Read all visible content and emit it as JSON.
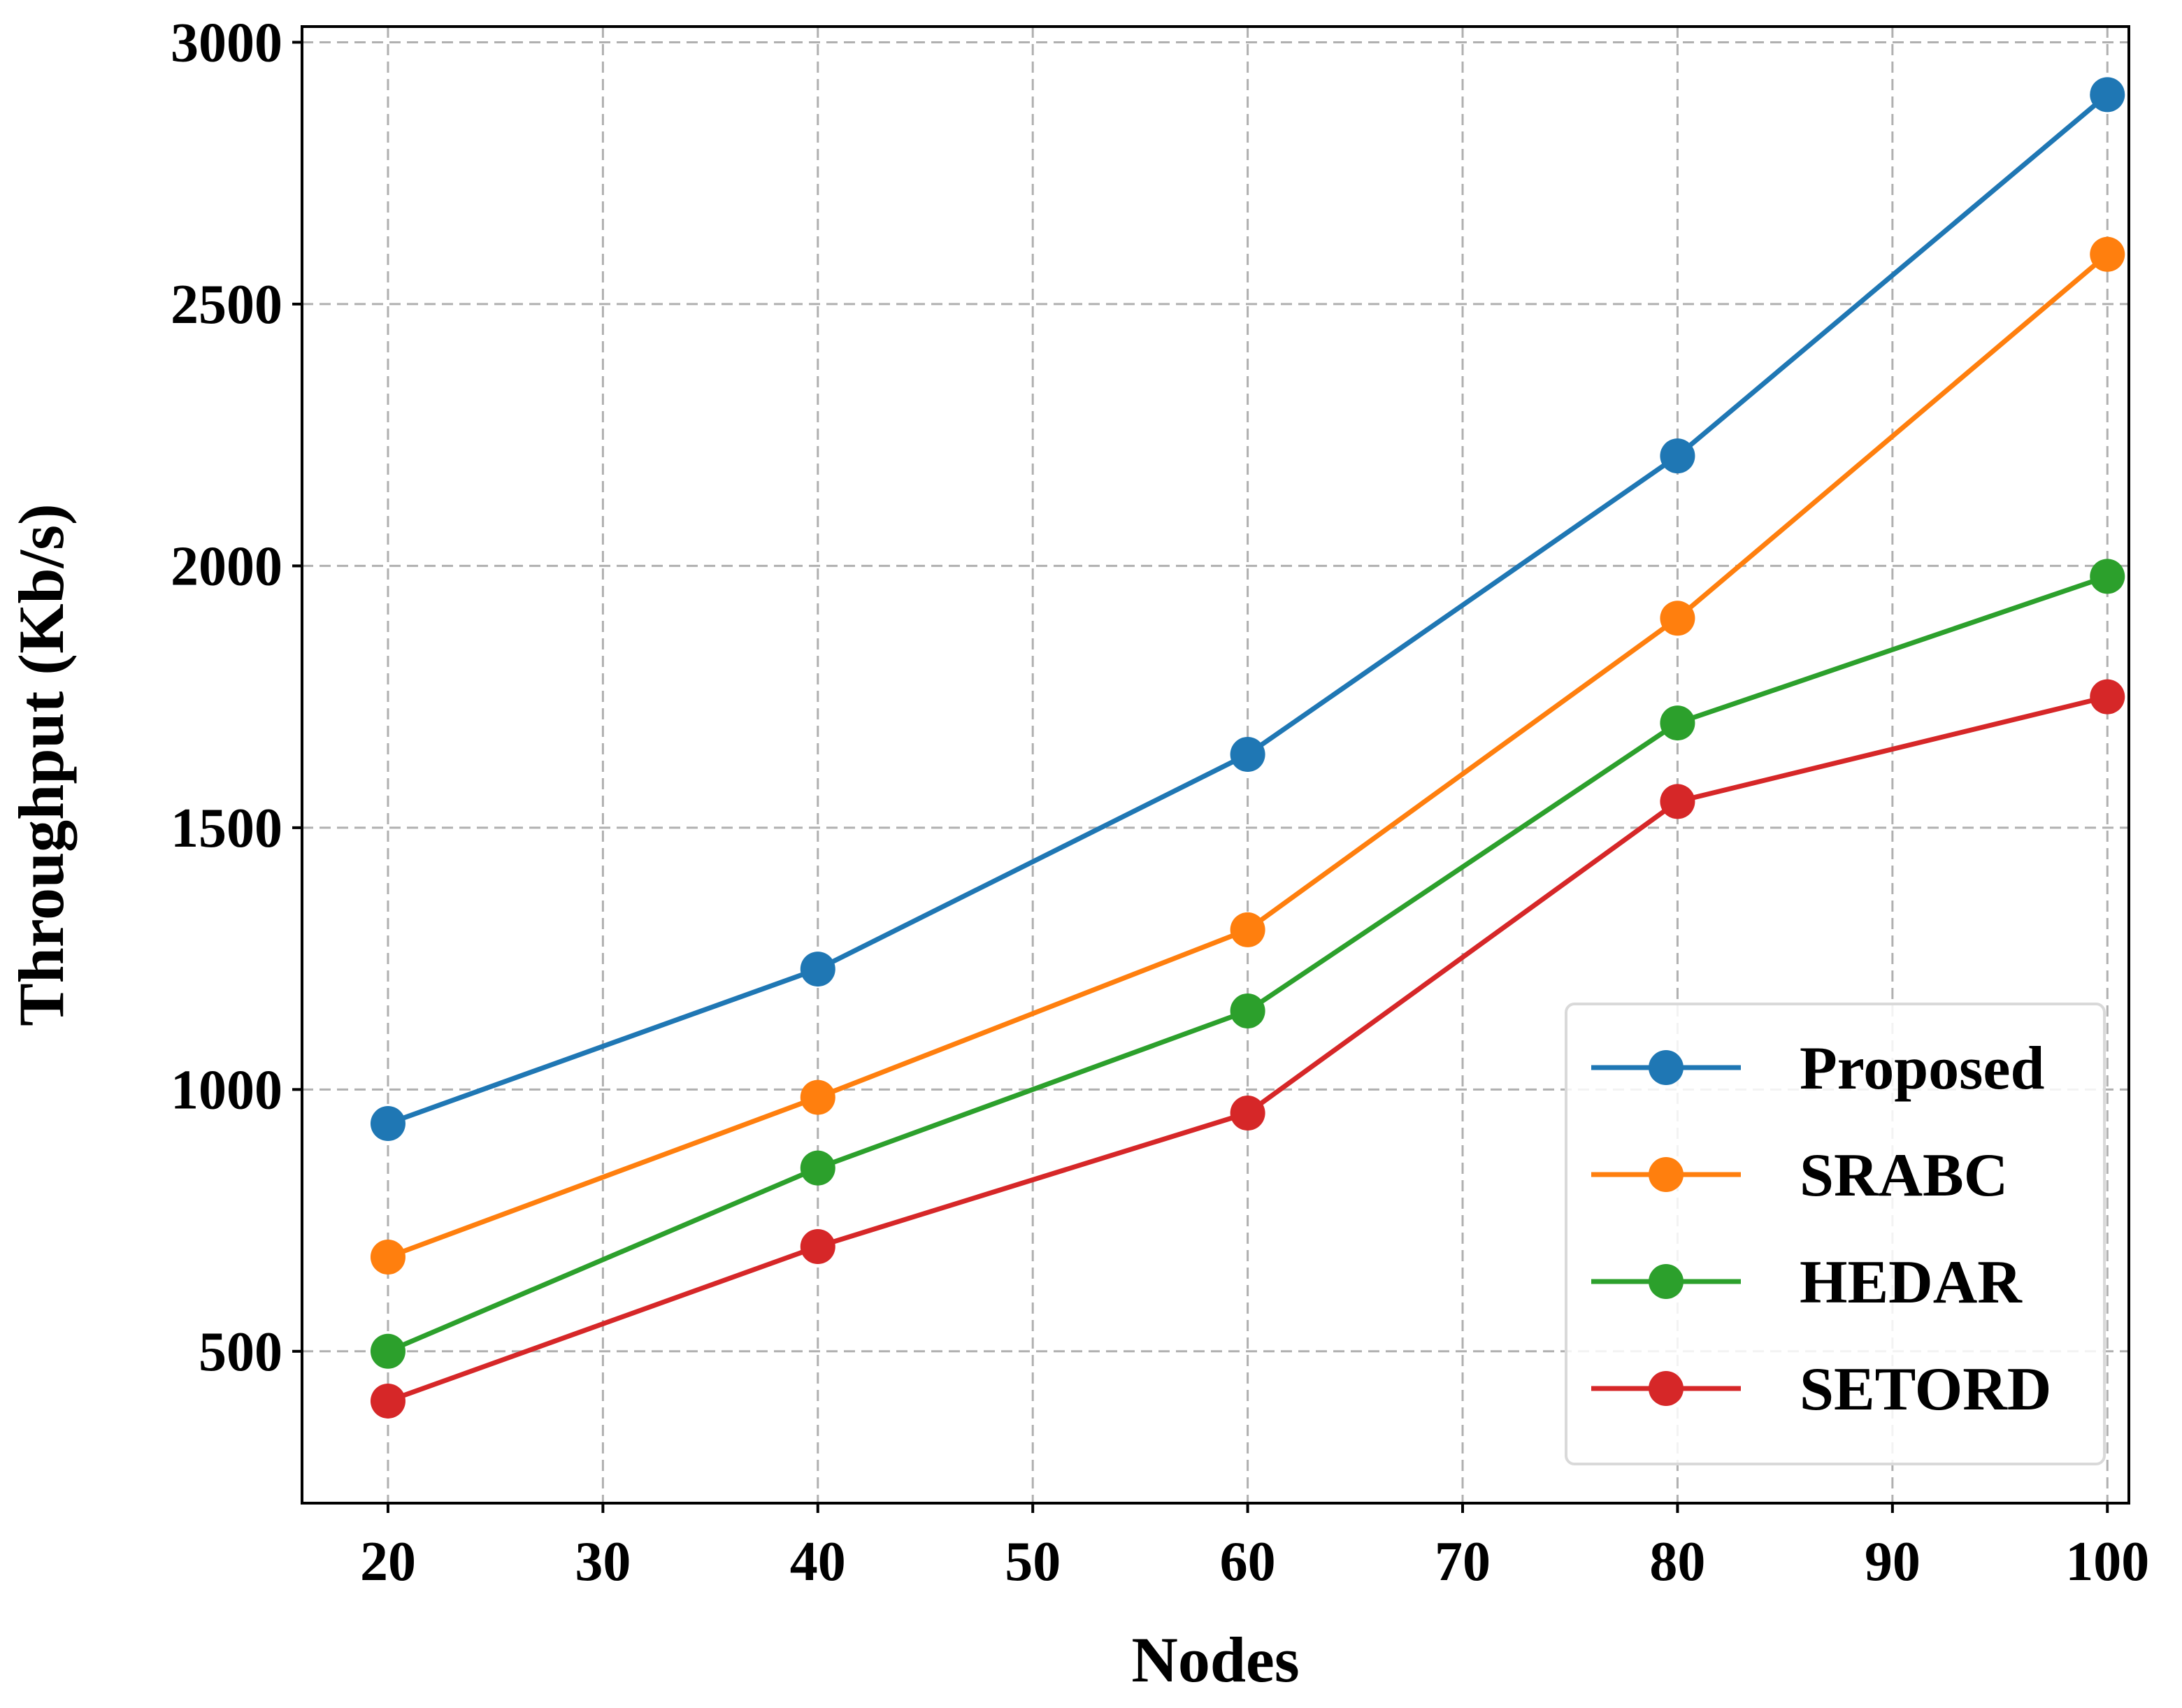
{
  "chart_data": {
    "type": "line",
    "title": "",
    "xlabel": "Nodes",
    "ylabel": "Throughput (Kb/s)",
    "x": [
      20,
      40,
      60,
      80,
      100
    ],
    "xlim": [
      16,
      101
    ],
    "ylim": [
      210,
      3030
    ],
    "xticks": [
      20,
      30,
      40,
      50,
      60,
      70,
      80,
      90,
      100
    ],
    "yticks": [
      500,
      1000,
      1500,
      2000,
      2500,
      3000
    ],
    "grid": true,
    "legend_position": "lower-right",
    "series": [
      {
        "name": "Proposed",
        "color": "#1f77b4",
        "values": [
          935,
          1230,
          1640,
          2210,
          2900
        ]
      },
      {
        "name": "SRABC",
        "color": "#ff7f0e",
        "values": [
          680,
          985,
          1305,
          1900,
          2595
        ]
      },
      {
        "name": "HEDAR",
        "color": "#2ca02c",
        "values": [
          500,
          850,
          1150,
          1700,
          1980
        ]
      },
      {
        "name": "SETORD",
        "color": "#d62728",
        "values": [
          405,
          700,
          955,
          1550,
          1750
        ]
      }
    ]
  }
}
